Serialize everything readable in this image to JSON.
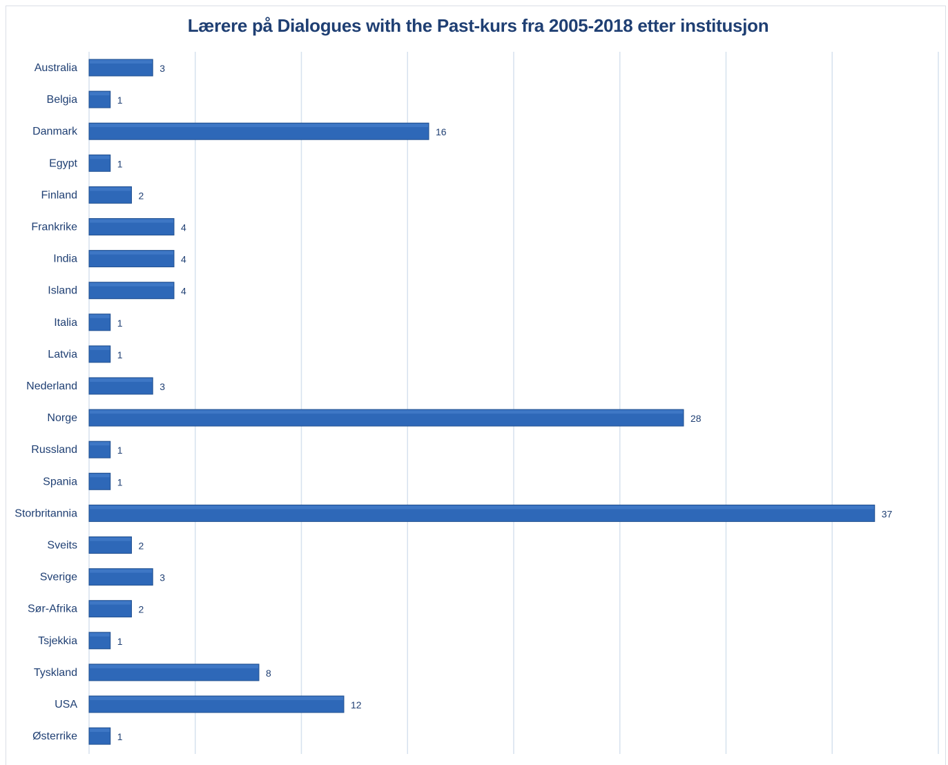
{
  "chart_data": {
    "type": "bar",
    "orientation": "horizontal",
    "title": "Lærere på Dialogues with the Past-kurs fra 2005-2018 etter institusjon",
    "categories": [
      "Australia",
      "Belgia",
      "Danmark",
      "Egypt",
      "Finland",
      "Frankrike",
      "India",
      "Island",
      "Italia",
      "Latvia",
      "Nederland",
      "Norge",
      "Russland",
      "Spania",
      "Storbritannia",
      "Sveits",
      "Sverige",
      "Sør-Afrika",
      "Tsjekkia",
      "Tyskland",
      "USA",
      "Østerrike"
    ],
    "values": [
      3,
      1,
      16,
      1,
      2,
      4,
      4,
      4,
      1,
      1,
      3,
      28,
      1,
      1,
      37,
      2,
      3,
      2,
      1,
      8,
      12,
      1
    ],
    "xlim": [
      0,
      40
    ],
    "grid": true,
    "legend": "none",
    "colors": {
      "bar": "#2e68b8",
      "bar_edge": "#22508f",
      "grid": "#d6e1ee",
      "text": "#1f3f73"
    }
  }
}
